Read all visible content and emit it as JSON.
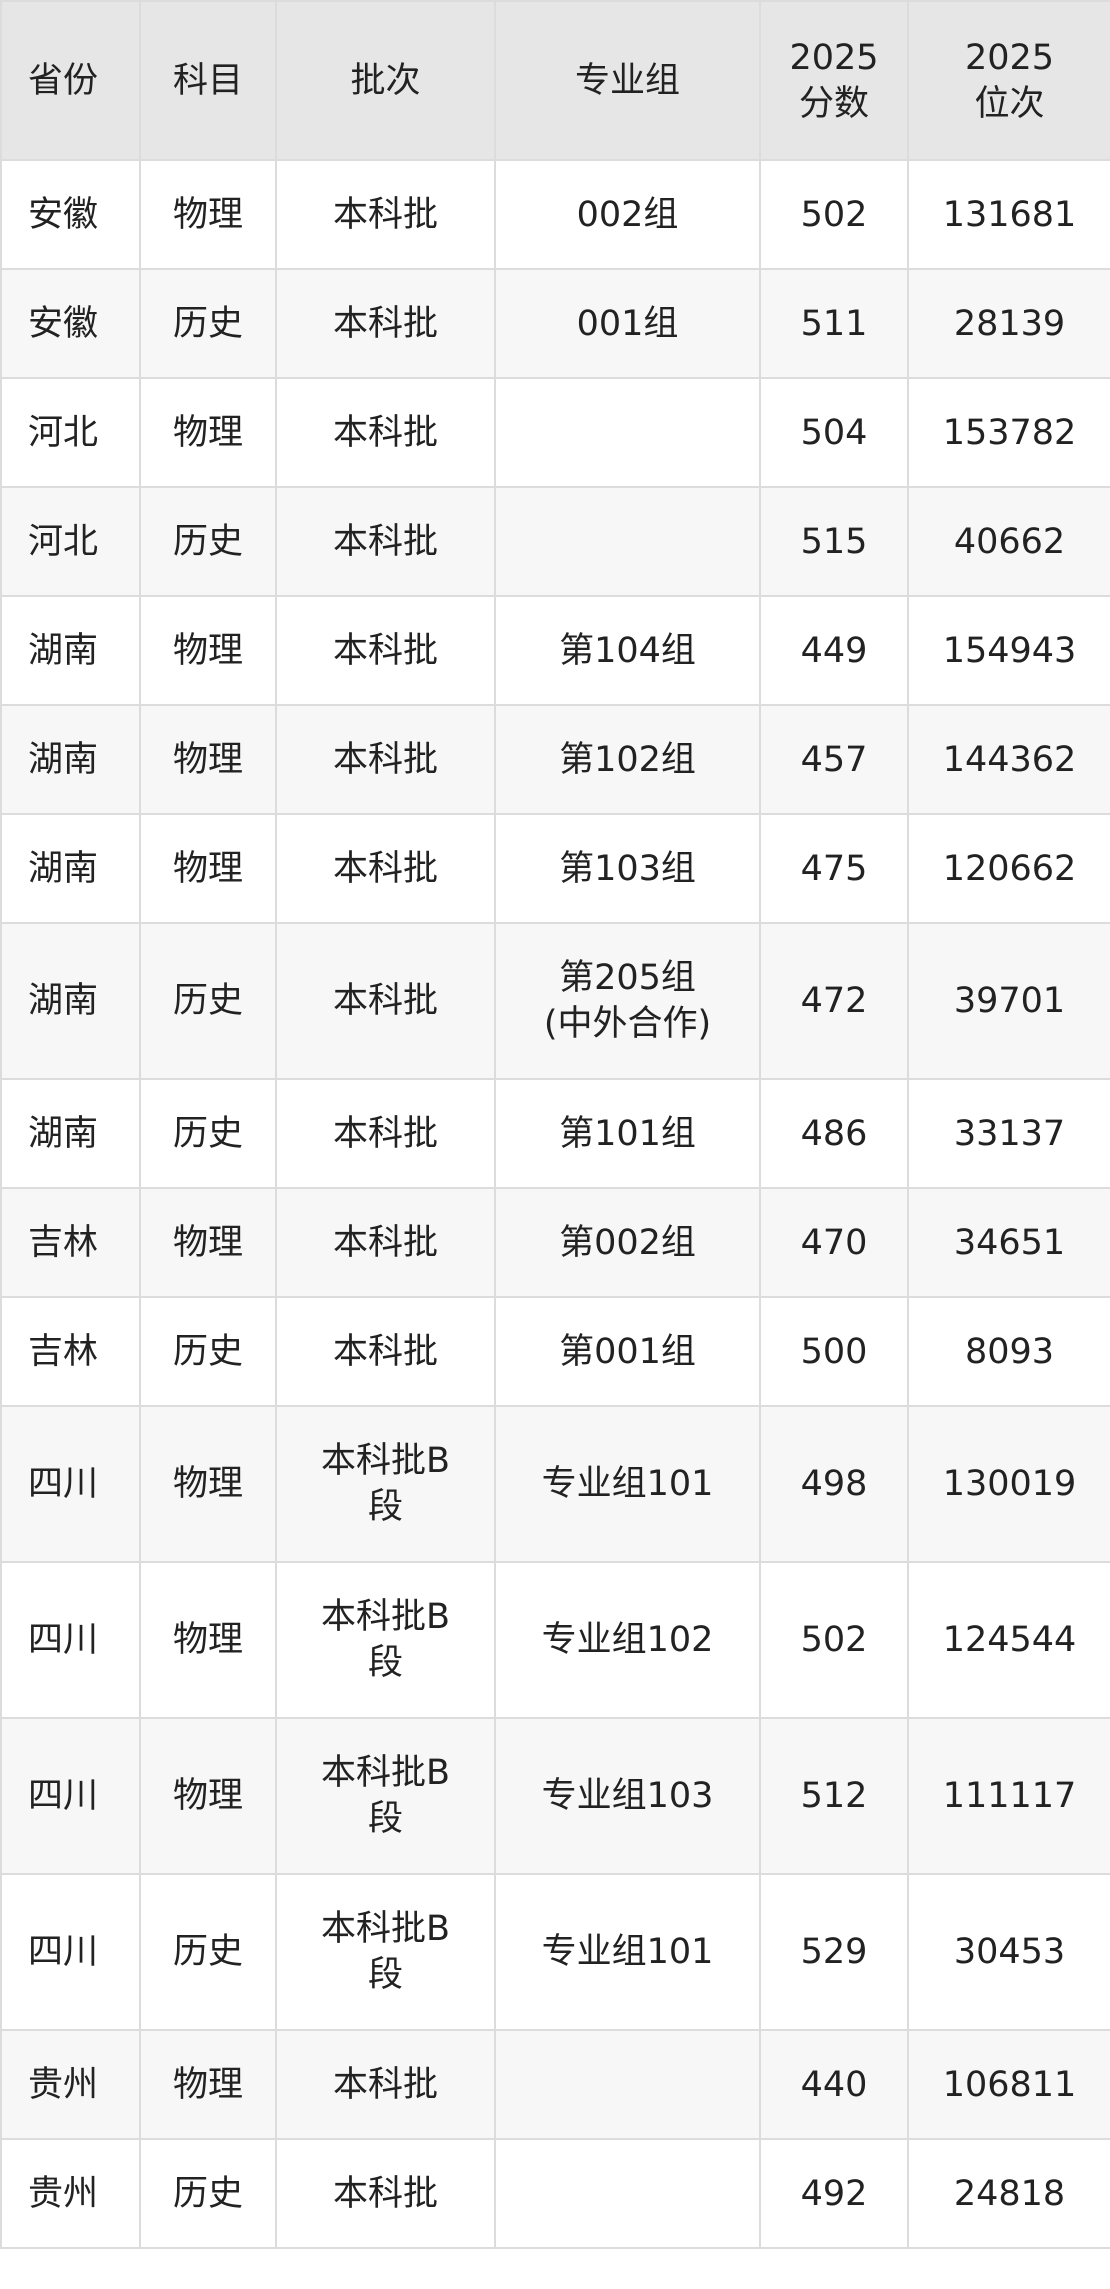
{
  "table": {
    "headers": [
      "省份",
      "科目",
      "批次",
      "专业组",
      "2025\n分数",
      "2025\n位次"
    ],
    "header_lines": [
      [
        "省份"
      ],
      [
        "科目"
      ],
      [
        "批次"
      ],
      [
        "专业组"
      ],
      [
        "2025",
        "分数"
      ],
      [
        "2025",
        "位次"
      ]
    ],
    "rows": [
      [
        "安徽",
        "物理",
        "本科批",
        "002组",
        "502",
        "131681"
      ],
      [
        "安徽",
        "历史",
        "本科批",
        "001组",
        "511",
        "28139"
      ],
      [
        "河北",
        "物理",
        "本科批",
        "",
        "504",
        "153782"
      ],
      [
        "河北",
        "历史",
        "本科批",
        "",
        "515",
        "40662"
      ],
      [
        "湖南",
        "物理",
        "本科批",
        "第104组",
        "449",
        "154943"
      ],
      [
        "湖南",
        "物理",
        "本科批",
        "第102组",
        "457",
        "144362"
      ],
      [
        "湖南",
        "物理",
        "本科批",
        "第103组",
        "475",
        "120662"
      ],
      [
        "湖南",
        "历史",
        "本科批",
        "第205组(中外合作)",
        "472",
        "39701"
      ],
      [
        "湖南",
        "历史",
        "本科批",
        "第101组",
        "486",
        "33137"
      ],
      [
        "吉林",
        "物理",
        "本科批",
        "第002组",
        "470",
        "34651"
      ],
      [
        "吉林",
        "历史",
        "本科批",
        "第001组",
        "500",
        "8093"
      ],
      [
        "四川",
        "物理",
        "本科批B段",
        "专业组101",
        "498",
        "130019"
      ],
      [
        "四川",
        "物理",
        "本科批B段",
        "专业组102",
        "502",
        "124544"
      ],
      [
        "四川",
        "物理",
        "本科批B段",
        "专业组103",
        "512",
        "111117"
      ],
      [
        "四川",
        "历史",
        "本科批B段",
        "专业组101",
        "529",
        "30453"
      ],
      [
        "贵州",
        "物理",
        "本科批",
        "",
        "440",
        "106811"
      ],
      [
        "贵州",
        "历史",
        "本科批",
        "",
        "492",
        "24818"
      ]
    ]
  },
  "colors": {
    "header_bg": "#e6e6e6",
    "stripe_bg": "#f7f7f7",
    "border": "#dcdcdc",
    "text": "#222222"
  }
}
